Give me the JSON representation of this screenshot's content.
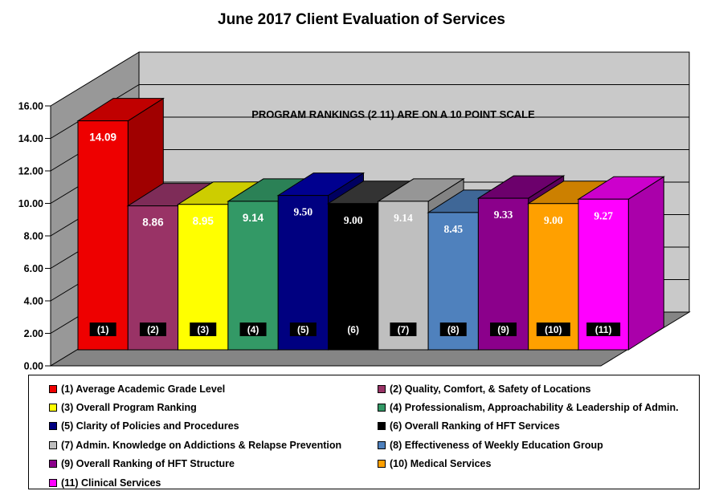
{
  "title": "June 2017 Client Evaluation of Services",
  "chart_data": {
    "type": "bar",
    "style": "3d-column",
    "title": "June 2017 Client Evaluation of Services",
    "annotation": "PROGRAM RANKINGS (2 11) ARE ON A 10 POINT SCALE",
    "categories": [
      "(1)",
      "(2)",
      "(3)",
      "(4)",
      "(5)",
      "(6)",
      "(7)",
      "(8)",
      "(9)",
      "(10)",
      "(11)"
    ],
    "values": [
      14.09,
      8.86,
      8.95,
      9.14,
      9.5,
      9.0,
      9.14,
      8.45,
      9.33,
      9.0,
      9.27
    ],
    "value_labels": [
      "14.09",
      "8.86",
      "8.95",
      "9.14",
      "9.50",
      "9.00",
      "9.14",
      "8.45",
      "9.33",
      "9.00",
      "9.27"
    ],
    "ylim": [
      0,
      16
    ],
    "ytick_step": 2,
    "ytick_labels": [
      "16.00",
      "14.00",
      "12.00",
      "10.00",
      "8.00",
      "6.00",
      "4.00",
      "2.00",
      "0.00"
    ],
    "grid": true,
    "legend_position": "bottom",
    "colors_front": [
      "#EE0000",
      "#993366",
      "#FFFF00",
      "#339966",
      "#000080",
      "#000000",
      "#BFBFBF",
      "#4F81BD",
      "#8B008B",
      "#FFA000",
      "#FF00FF"
    ],
    "colors_top": [
      "#C00000",
      "#7E2C58",
      "#CDCD00",
      "#2B8156",
      "#00008F",
      "#333333",
      "#969696",
      "#3F6797",
      "#6C006C",
      "#CC8000",
      "#CC00CC"
    ],
    "colors_side": [
      "#A00000",
      "#69254A",
      "#ABAB00",
      "#226644",
      "#000060",
      "#0D0D0D",
      "#838383",
      "#35577F",
      "#5A005A",
      "#AA6B00",
      "#AA00AA"
    ],
    "wall_color": "#C9C9C9",
    "side_wall_color": "#989898",
    "floor_color": "#858585",
    "value_label_color": "#FFFFFF",
    "category_label_color": "#FFFFFF",
    "category_box_color": "#000000"
  },
  "legend": {
    "items": [
      {
        "label": "(1) Average Academic Grade Level",
        "color": "#EE0000"
      },
      {
        "label": "(2) Quality, Comfort, & Safety of Locations",
        "color": "#993366"
      },
      {
        "label": "(3) Overall Program Ranking",
        "color": "#FFFF00"
      },
      {
        "label": "(4) Professionalism, Approachability  & Leadership of Admin.",
        "color": "#339966"
      },
      {
        "label": "(5) Clarity of Policies and Procedures",
        "color": "#000080"
      },
      {
        "label": "(6) Overall Ranking of HFT Services",
        "color": "#000000"
      },
      {
        "label": "(7) Admin. Knowledge on Addictions & Relapse Prevention",
        "color": "#BFBFBF"
      },
      {
        "label": "(8) Effectiveness of Weekly Education Group",
        "color": "#4F81BD"
      },
      {
        "label": "(9) Overall Ranking of HFT Structure",
        "color": "#8B008B"
      },
      {
        "label": "(10) Medical Services",
        "color": "#FFA000"
      },
      {
        "label": "(11) Clinical Services",
        "color": "#FF00FF"
      }
    ]
  }
}
